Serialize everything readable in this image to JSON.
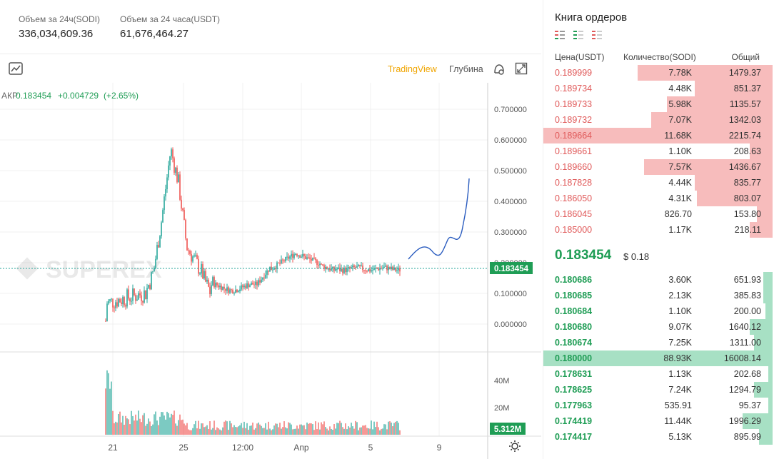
{
  "stats": {
    "vol24_label": "Объем за 24ч(SODI)",
    "vol24_value": "336,034,609.36",
    "vol24usdt_label": "Объем за 24 часа(USDT)",
    "vol24usdt_value": "61,676,464.27"
  },
  "chart": {
    "tradingview_label": "TradingView",
    "depth_label": "Глубина",
    "ticker_prefix": "АКР",
    "last": "0.183454",
    "change": "+0.004729",
    "change_pct": "(+2.65%)",
    "watermark": "SUPEREX",
    "price_axis": [
      "0.700000",
      "0.600000",
      "0.500000",
      "0.400000",
      "0.300000",
      "0.200000",
      "0.100000",
      "0.000000"
    ],
    "price_tag": "0.183454",
    "volume_axis": [
      "40M",
      "20M"
    ],
    "volume_tag": "5.312M",
    "time_axis": [
      "21",
      "25",
      "12:00",
      "Апр",
      "5",
      "9"
    ],
    "accent_color": "#f0a500",
    "up_color": "#26a69a",
    "down_color": "#ef5350"
  },
  "book": {
    "title": "Книга ордеров",
    "col_price": "Цена(USDT)",
    "col_qty": "Количество(SODI)",
    "col_total": "Общий",
    "asks": [
      {
        "price": "0.189999",
        "qty": "7.78K",
        "total": "1479.37",
        "depth": 0.59
      },
      {
        "price": "0.189734",
        "qty": "4.48K",
        "total": "851.37",
        "depth": 0.34
      },
      {
        "price": "0.189733",
        "qty": "5.98K",
        "total": "1135.57",
        "depth": 0.46
      },
      {
        "price": "0.189732",
        "qty": "7.07K",
        "total": "1342.03",
        "depth": 0.53
      },
      {
        "price": "0.189664",
        "qty": "11.68K",
        "total": "2215.74",
        "depth": 1.0
      },
      {
        "price": "0.189661",
        "qty": "1.10K",
        "total": "208.63",
        "depth": 0.1
      },
      {
        "price": "0.189660",
        "qty": "7.57K",
        "total": "1436.67",
        "depth": 0.56
      },
      {
        "price": "0.187828",
        "qty": "4.44K",
        "total": "835.77",
        "depth": 0.34
      },
      {
        "price": "0.186050",
        "qty": "4.31K",
        "total": "803.07",
        "depth": 0.33
      },
      {
        "price": "0.186045",
        "qty": "826.70",
        "total": "153.80",
        "depth": 0.07
      },
      {
        "price": "0.185000",
        "qty": "1.17K",
        "total": "218.11",
        "depth": 0.1
      }
    ],
    "mid_price": "0.183454",
    "mid_usd": "$ 0.18",
    "bids": [
      {
        "price": "0.180686",
        "qty": "3.60K",
        "total": "651.93",
        "depth": 0.04
      },
      {
        "price": "0.180685",
        "qty": "2.13K",
        "total": "385.83",
        "depth": 0.04
      },
      {
        "price": "0.180684",
        "qty": "1.10K",
        "total": "200.00",
        "depth": 0.03
      },
      {
        "price": "0.180680",
        "qty": "9.07K",
        "total": "1640.12",
        "depth": 0.1
      },
      {
        "price": "0.180674",
        "qty": "7.25K",
        "total": "1311.00",
        "depth": 0.08
      },
      {
        "price": "0.180000",
        "qty": "88.93K",
        "total": "16008.14",
        "depth": 1.0
      },
      {
        "price": "0.178631",
        "qty": "1.13K",
        "total": "202.68",
        "depth": 0.02
      },
      {
        "price": "0.178625",
        "qty": "7.24K",
        "total": "1294.79",
        "depth": 0.08
      },
      {
        "price": "0.177963",
        "qty": "535.91",
        "total": "95.37",
        "depth": 0.01
      },
      {
        "price": "0.174419",
        "qty": "11.44K",
        "total": "1996.29",
        "depth": 0.13
      },
      {
        "price": "0.174417",
        "qty": "5.13K",
        "total": "895.99",
        "depth": 0.06
      }
    ]
  }
}
